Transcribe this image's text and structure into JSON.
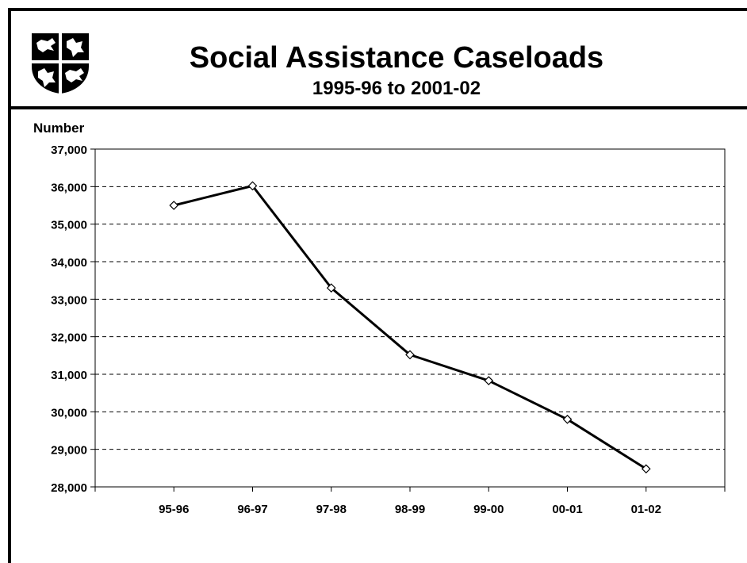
{
  "header": {
    "title": "Social Assistance Caseloads",
    "subtitle": "1995-96 to 2001-02"
  },
  "logo": {
    "icon": "coat-of-arms-icon"
  },
  "chart_data": {
    "type": "line",
    "title": "Social Assistance Caseloads",
    "subtitle": "1995-96 to 2001-02",
    "xlabel": "",
    "ylabel": "Number",
    "categories": [
      "95-96",
      "96-97",
      "97-98",
      "98-99",
      "99-00",
      "00-01",
      "01-02"
    ],
    "series": [
      {
        "values": [
          35500,
          36020,
          33300,
          31520,
          30830,
          29800,
          28480
        ]
      }
    ],
    "ylim": [
      28000,
      37000
    ],
    "yticks": [
      28000,
      29000,
      30000,
      31000,
      32000,
      33000,
      34000,
      35000,
      36000,
      37000
    ],
    "ytick_labels": [
      "28,000",
      "29,000",
      "30,000",
      "31,000",
      "32,000",
      "33,000",
      "34,000",
      "35,000",
      "36,000",
      "37,000"
    ],
    "grid": true,
    "legend": "none",
    "line_color": "#000000",
    "marker": "diamond"
  }
}
